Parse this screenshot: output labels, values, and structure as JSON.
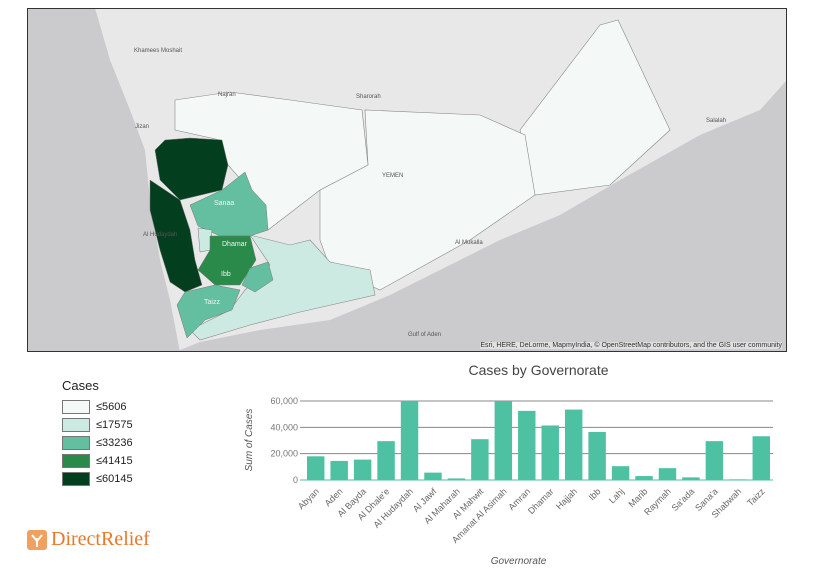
{
  "map": {
    "labels": {
      "khamees": "Khamees Moshait",
      "najran": "Najran",
      "sharorah": "Sharorah",
      "jizan": "Jizan",
      "yemen": "YEMEN",
      "salalah": "Salalah",
      "sanaa": "Sanaa",
      "dhamar": "Dhamar",
      "ibb": "Ibb",
      "taizz": "Taizz",
      "hudaydah": "Al Hudaydah",
      "mukalla": "Al Mukalla",
      "gulf": "Gulf of Aden"
    },
    "attribution": "Esri, HERE, DeLorme, MapmyIndia, © OpenStreetMap contributors, and the GIS user community"
  },
  "legend": {
    "title": "Cases",
    "items": [
      {
        "label": "≤5606",
        "color": "#f4f9f8"
      },
      {
        "label": "≤17575",
        "color": "#cdeae2"
      },
      {
        "label": "≤33236",
        "color": "#64bfa0"
      },
      {
        "label": "≤41415",
        "color": "#2a8a4a"
      },
      {
        "label": "≤60145",
        "color": "#033f1f"
      }
    ]
  },
  "chart_data": {
    "type": "bar",
    "title": "Cases by Governorate",
    "xlabel": "Governorate",
    "ylabel": "Sum of Cases",
    "ylim": [
      0,
      60000
    ],
    "yticks": [
      "0",
      "20,000",
      "40,000",
      "60,000"
    ],
    "grid": true,
    "color": "#4fc1a3",
    "categories": [
      "Abyan",
      "Aden",
      "Al Bayda",
      "Al Dhale'e",
      "Al Hudaydah",
      "Al Jawf",
      "Al Maharah",
      "Al Mahwit",
      "Amanat Al Asimah",
      "Amran",
      "Dhamar",
      "Hajjah",
      "Ibb",
      "Lahj",
      "Marib",
      "Raymah",
      "Sa'ada",
      "Sana'a",
      "Shabwah",
      "Taizz"
    ],
    "values": [
      18000,
      14500,
      15500,
      29500,
      60145,
      5606,
      1200,
      31000,
      60000,
      52500,
      41415,
      53500,
      36500,
      10500,
      3000,
      9000,
      2000,
      29500,
      500,
      33236
    ]
  },
  "logo": {
    "text": "DirectRelief"
  }
}
